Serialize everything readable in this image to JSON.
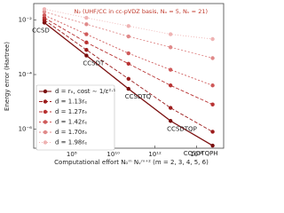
{
  "chart_data": {
    "type": "line",
    "title": "N₂ (UHF/CC in cc-pVDZ basis, Nₒ = 5, Nᵥ = 21)",
    "xlabel": "Computational effort Nₒᵐ Nᵥᵐ⁺² (m = 2, 3, 4, 5, 6)",
    "ylabel": "Energy error (Hartree)",
    "xscale": "log",
    "yscale": "log",
    "x": [
      4862025,
      510512625,
      53603825625,
      5628401690625,
      590982177515625
    ],
    "annotations": [
      "CCSD",
      "CCSDT",
      "CCSDTQ",
      "CCSDTQP",
      "CCSDTQPH"
    ],
    "xlim": [
      1500000,
      2000000000000000
    ],
    "ylim": [
      2e-07,
      0.04
    ],
    "xticks": [
      {
        "value": 100000000,
        "label": "10⁸"
      },
      {
        "value": 10000000000,
        "label": "10¹⁰"
      },
      {
        "value": 1000000000000,
        "label": "10¹²"
      },
      {
        "value": 100000000000000,
        "label": "10¹⁴"
      }
    ],
    "yticks": [
      {
        "value": 0.01,
        "label": "10⁻²"
      },
      {
        "value": 0.0001,
        "label": "10⁻⁴"
      },
      {
        "value": 1e-06,
        "label": "10⁻⁶"
      }
    ],
    "legend_position": "lower left",
    "series": [
      {
        "name": "d = rₑ, cost ∼ 1/ε²·¹",
        "color": "#7a0e0e",
        "dash": "none",
        "values": [
          0.008,
          0.0005,
          3e-05,
          2e-06,
          2.5e-07
        ]
      },
      {
        "name": "d = 1.13rₑ",
        "color": "#9c1c1c",
        "dash": "4,2",
        "values": [
          0.01,
          0.0008,
          7e-05,
          6e-06,
          8e-07
        ]
      },
      {
        "name": "d = 1.27rₑ",
        "color": "#b83232",
        "dash": "4,2",
        "values": [
          0.012,
          0.0015,
          0.00025,
          4e-05,
          8e-06
        ]
      },
      {
        "name": "d = 1.42rₑ",
        "color": "#cf5a5a",
        "dash": "2,2",
        "values": [
          0.015,
          0.003,
          0.0006,
          0.00015,
          4e-05
        ]
      },
      {
        "name": "d = 1.70rₑ",
        "color": "#e08a8a",
        "dash": "2,2",
        "values": [
          0.02,
          0.007,
          0.0025,
          0.001,
          0.0004
        ]
      },
      {
        "name": "d = 1.98rₑ",
        "color": "#efb3b3",
        "dash": "1,2",
        "values": [
          0.025,
          0.012,
          0.006,
          0.003,
          0.002
        ]
      }
    ]
  }
}
